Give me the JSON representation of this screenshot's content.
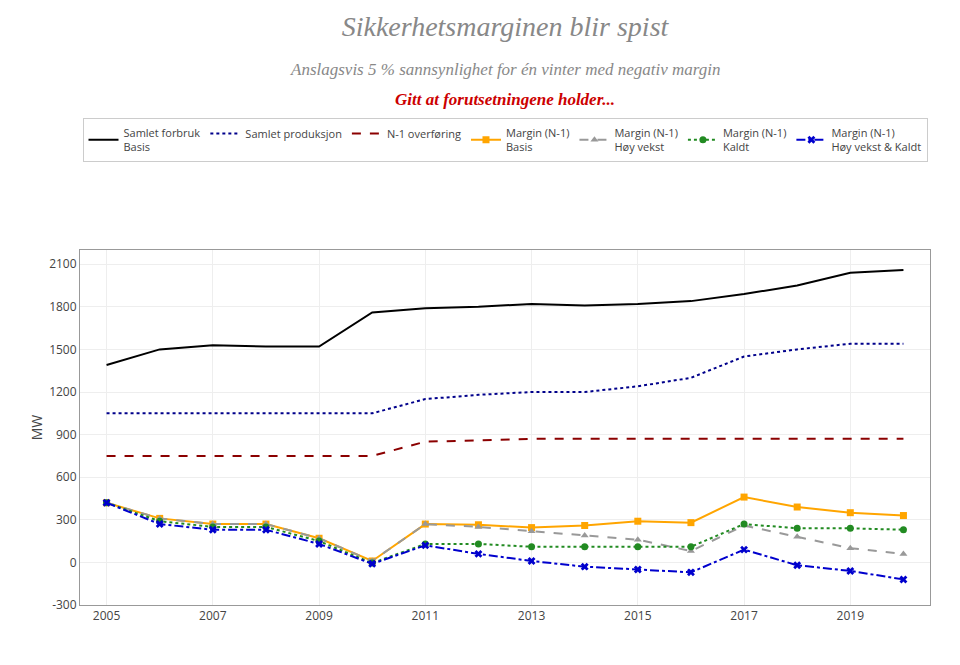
{
  "chart_data": {
    "type": "line",
    "title": "Sikkerhetsmarginen blir spist",
    "subtitle": [
      "Anslagsvis 5 % sannsynlighet for én vinter med negativ margin",
      "Gitt at forutsetningene holder..."
    ],
    "y_label": "MW",
    "x": [
      2005,
      2006,
      2007,
      2008,
      2009,
      2010,
      2011,
      2012,
      2013,
      2014,
      2015,
      2016,
      2017,
      2018,
      2019,
      2020
    ],
    "series": [
      {
        "name": "Samlet forbruk\nBasis",
        "color": "#000000",
        "line_style": "solid",
        "marker": "none",
        "values": [
          1390,
          1500,
          1530,
          1520,
          1520,
          1760,
          1790,
          1800,
          1820,
          1810,
          1820,
          1840,
          1890,
          1950,
          2040,
          2060
        ]
      },
      {
        "name": "Samlet produksjon",
        "color": "#00008B",
        "line_style": "dot",
        "marker": "none",
        "values": [
          1050,
          1050,
          1050,
          1050,
          1050,
          1050,
          1150,
          1180,
          1200,
          1200,
          1240,
          1300,
          1450,
          1500,
          1540,
          1540
        ]
      },
      {
        "name": "N-1 overføring",
        "color": "#8B0000",
        "line_style": "dash",
        "marker": "none",
        "values": [
          750,
          750,
          750,
          750,
          750,
          750,
          850,
          860,
          870,
          870,
          870,
          870,
          870,
          870,
          870,
          870
        ]
      },
      {
        "name": "Margin (N-1)\nBasis",
        "color": "#FFA500",
        "line_style": "solid",
        "marker": "square",
        "values": [
          420,
          310,
          270,
          270,
          170,
          10,
          270,
          265,
          245,
          260,
          290,
          280,
          460,
          390,
          350,
          330
        ]
      },
      {
        "name": "Margin (N-1)\nHøy vekst",
        "color": "#999999",
        "line_style": "dash",
        "marker": "triangle-up",
        "values": [
          420,
          310,
          270,
          270,
          170,
          10,
          270,
          250,
          220,
          190,
          160,
          80,
          260,
          180,
          100,
          60
        ]
      },
      {
        "name": "Margin (N-1)\nKaldt",
        "color": "#228B22",
        "line_style": "dot",
        "marker": "circle",
        "values": [
          420,
          290,
          250,
          250,
          150,
          -5,
          130,
          130,
          110,
          110,
          110,
          110,
          270,
          240,
          240,
          230
        ]
      },
      {
        "name": "Margin (N-1)\nHøy vekst & Kaldt",
        "color": "#0000CD",
        "line_style": "dashdot",
        "marker": "x",
        "values": [
          420,
          270,
          230,
          230,
          130,
          -10,
          120,
          60,
          10,
          -30,
          -50,
          -70,
          90,
          -20,
          -60,
          -120
        ]
      }
    ],
    "xlim": [
      2004.5,
      2020.5
    ],
    "xticks": [
      2005,
      2007,
      2009,
      2011,
      2013,
      2015,
      2017,
      2019
    ],
    "ylim": [
      -300,
      2200
    ],
    "yticks": [
      -300,
      0,
      300,
      600,
      900,
      1200,
      1500,
      1800,
      2100
    ],
    "grid": true,
    "legend": "top"
  }
}
